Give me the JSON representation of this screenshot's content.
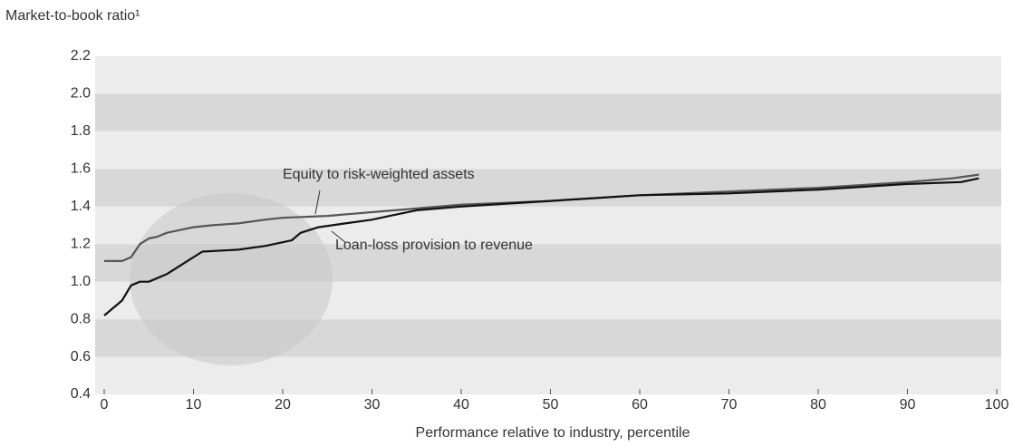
{
  "chart_data": {
    "type": "line",
    "y_label": "Market-to-book ratio¹",
    "x_label": "Performance relative to industry, percentile",
    "xlim": [
      0,
      100
    ],
    "xticks": [
      0,
      10,
      20,
      30,
      40,
      50,
      60,
      70,
      80,
      90,
      100
    ],
    "ylim": [
      0.4,
      2.2
    ],
    "yticks": [
      0.4,
      0.6,
      0.8,
      {
        "value": 1,
        "label": "1.0"
      },
      1.2,
      1.4,
      1.6,
      1.8,
      {
        "value": 2,
        "label": "2.0"
      },
      2.2
    ],
    "grid": "bands",
    "series": [
      {
        "name": "Equity to risk-weighted assets",
        "color": "#555555",
        "x": [
          0,
          2,
          3,
          4,
          5,
          6,
          7,
          8,
          10,
          12,
          15,
          18,
          20,
          25,
          30,
          35,
          40,
          50,
          60,
          70,
          80,
          90,
          95,
          98
        ],
        "values": [
          1.11,
          1.11,
          1.13,
          1.2,
          1.23,
          1.24,
          1.26,
          1.27,
          1.29,
          1.3,
          1.31,
          1.33,
          1.34,
          1.35,
          1.37,
          1.39,
          1.41,
          1.43,
          1.46,
          1.48,
          1.5,
          1.53,
          1.55,
          1.57
        ]
      },
      {
        "name": "Loan-loss provision to revenue",
        "color": "#111111",
        "x": [
          0,
          2,
          3,
          4,
          5,
          7,
          9,
          11,
          15,
          18,
          20,
          21,
          22,
          24,
          27,
          30,
          32,
          35,
          40,
          50,
          60,
          70,
          80,
          90,
          96,
          98
        ],
        "values": [
          0.82,
          0.9,
          0.98,
          1.0,
          1.0,
          1.04,
          1.1,
          1.16,
          1.17,
          1.19,
          1.21,
          1.22,
          1.26,
          1.29,
          1.31,
          1.33,
          1.35,
          1.38,
          1.4,
          1.43,
          1.46,
          1.47,
          1.49,
          1.52,
          1.53,
          1.55
        ]
      }
    ]
  }
}
